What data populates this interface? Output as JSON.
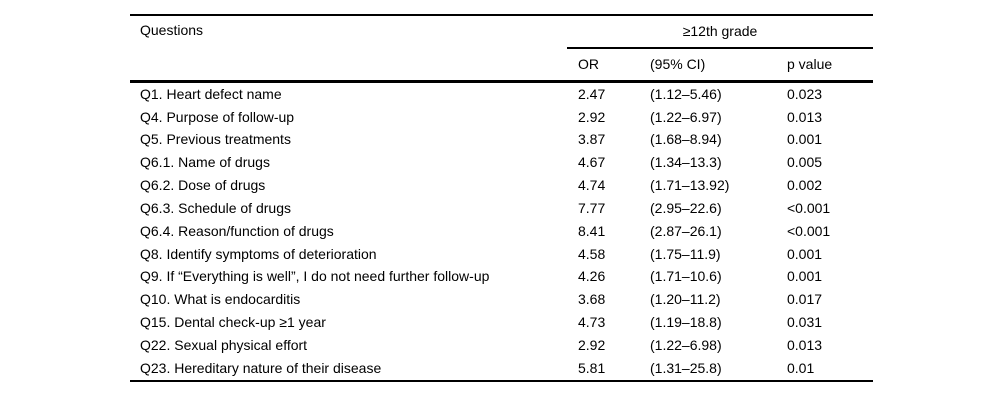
{
  "colors": {
    "background": "#ffffff",
    "text": "#000000",
    "rule": "#000000"
  },
  "table": {
    "header": {
      "questions_label": "Questions",
      "group_label": "≥12th grade",
      "or_label": "OR",
      "ci_label": "(95% CI)",
      "p_label": "p value"
    },
    "rows": [
      {
        "question": "Q1. Heart defect name",
        "or": "2.47",
        "ci": "(1.12–5.46)",
        "p": "0.023"
      },
      {
        "question": "Q4. Purpose of follow-up",
        "or": "2.92",
        "ci": "(1.22–6.97)",
        "p": "0.013"
      },
      {
        "question": "Q5. Previous treatments",
        "or": "3.87",
        "ci": "(1.68–8.94)",
        "p": "0.001"
      },
      {
        "question": "Q6.1. Name of drugs",
        "or": "4.67",
        "ci": "(1.34–13.3)",
        "p": "0.005"
      },
      {
        "question": "Q6.2. Dose of drugs",
        "or": "4.74",
        "ci": "(1.71–13.92)",
        "p": "0.002"
      },
      {
        "question": "Q6.3. Schedule of drugs",
        "or": "7.77",
        "ci": "(2.95–22.6)",
        "p": "<0.001"
      },
      {
        "question": "Q6.4. Reason/function of drugs",
        "or": "8.41",
        "ci": "(2.87–26.1)",
        "p": "<0.001"
      },
      {
        "question": "Q8. Identify symptoms of deterioration",
        "or": "4.58",
        "ci": "(1.75–11.9)",
        "p": "0.001"
      },
      {
        "question": "Q9. If “Everything is well”, I do not need further follow-up",
        "or": "4.26",
        "ci": "(1.71–10.6)",
        "p": "0.001"
      },
      {
        "question": "Q10. What is endocarditis",
        "or": "3.68",
        "ci": "(1.20–11.2)",
        "p": "0.017"
      },
      {
        "question": "Q15. Dental check-up ≥1 year",
        "or": "4.73",
        "ci": "(1.19–18.8)",
        "p": "0.031"
      },
      {
        "question": "Q22. Sexual physical effort",
        "or": "2.92",
        "ci": "(1.22–6.98)",
        "p": "0.013"
      },
      {
        "question": "Q23. Hereditary nature of their disease",
        "or": "5.81",
        "ci": "(1.31–25.8)",
        "p": "0.01"
      }
    ]
  }
}
